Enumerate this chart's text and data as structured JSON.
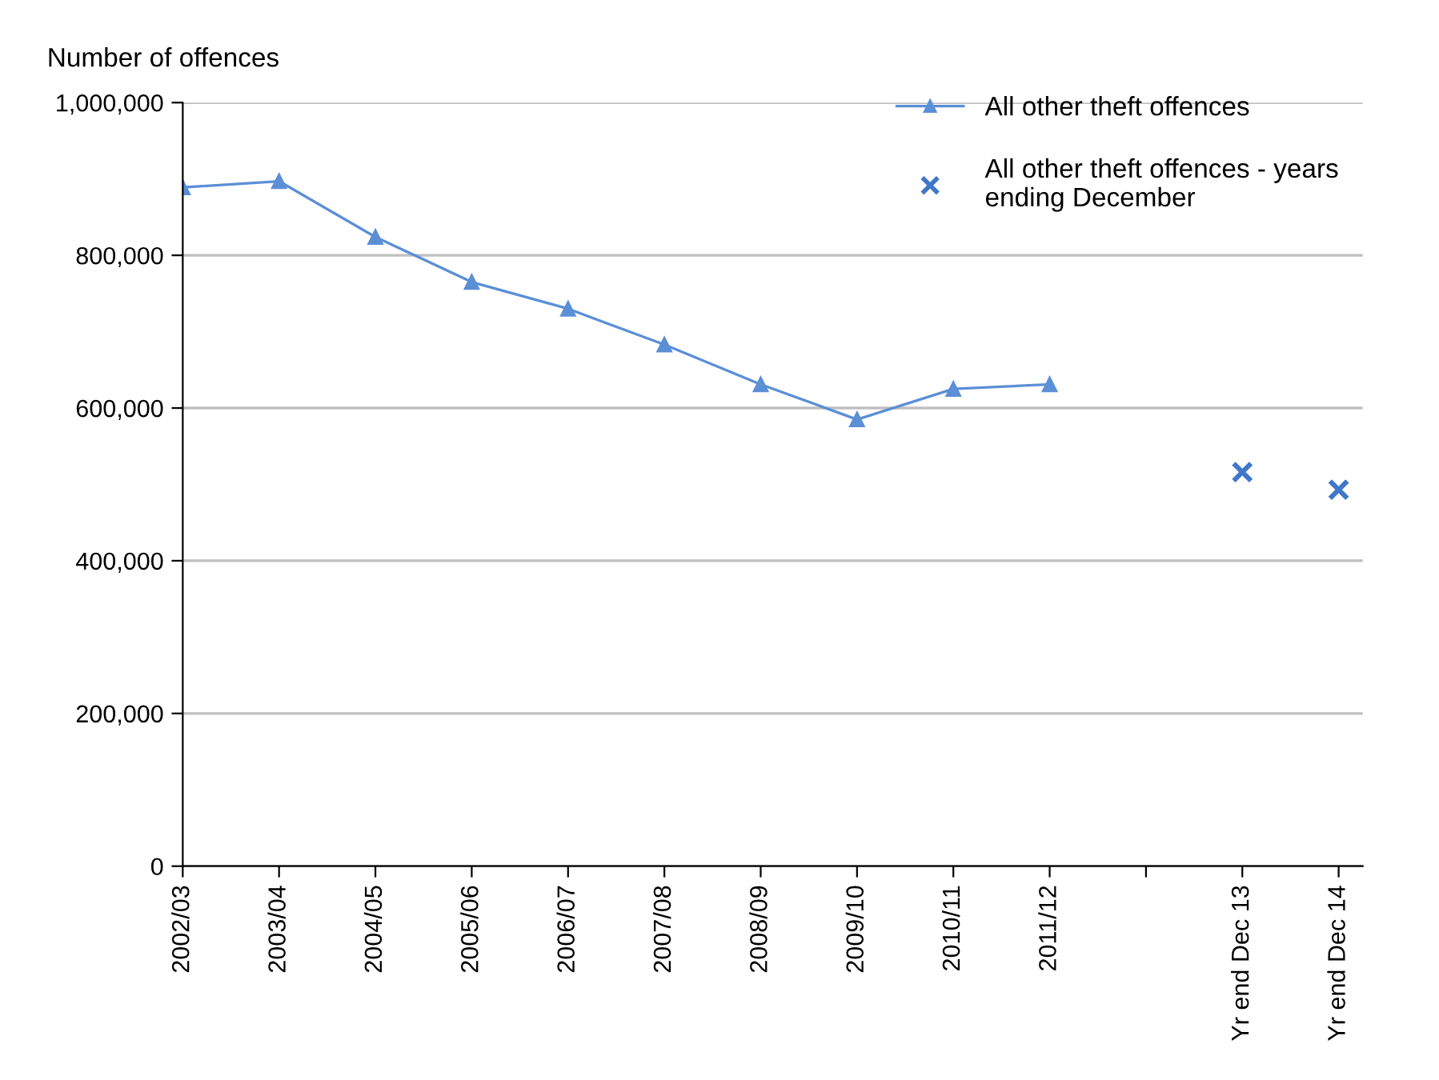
{
  "chart_data": {
    "type": "line",
    "ylabel": "Number of offences",
    "categories": [
      "2002/03",
      "2003/04",
      "2004/05",
      "2005/06",
      "2006/07",
      "2007/08",
      "2008/09",
      "2009/10",
      "2010/11",
      "2011/12",
      null,
      "Yr end Dec 13",
      "Yr end Dec 14"
    ],
    "series": [
      {
        "name": "All other theft offences",
        "color": "#5b8fd6",
        "marker": "triangle",
        "values": [
          889000,
          897000,
          824000,
          765000,
          730000,
          683000,
          631000,
          585000,
          625000,
          631000,
          null,
          null,
          null
        ]
      },
      {
        "name": "All other theft offences - years ending December",
        "type": "scatter",
        "color": "#3f78c6",
        "marker": "cross",
        "values": [
          null,
          null,
          null,
          null,
          null,
          null,
          null,
          null,
          null,
          null,
          null,
          516000,
          493000
        ]
      }
    ],
    "ylim": [
      0,
      1000000
    ],
    "yticks": [
      {
        "value": 0,
        "label": "0"
      },
      {
        "value": 200000,
        "label": "200,000"
      },
      {
        "value": 400000,
        "label": "400,000"
      },
      {
        "value": 600000,
        "label": "600,000"
      },
      {
        "value": 800000,
        "label": "800,000"
      },
      {
        "value": 1000000,
        "label": "1,000,000"
      }
    ],
    "grid": "y",
    "legend": "top right"
  }
}
